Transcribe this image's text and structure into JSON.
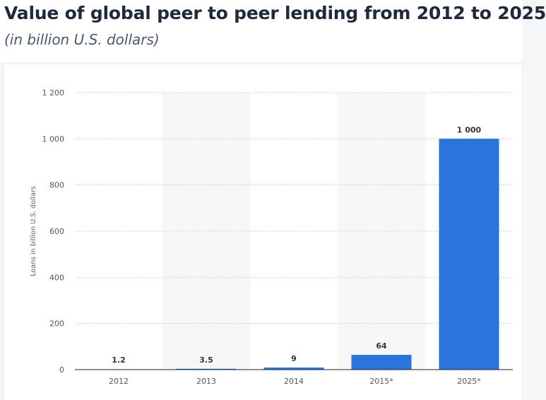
{
  "header": {
    "title": "Value of global peer to peer lending from 2012 to 2025",
    "subtitle": "(in billion U.S. dollars)"
  },
  "chart_data": {
    "type": "bar",
    "title": "Value of global peer to peer lending from 2012 to 2025",
    "subtitle": "(in billion U.S. dollars)",
    "categories": [
      "2012",
      "2013",
      "2014",
      "2015*",
      "2025*"
    ],
    "values": [
      1.2,
      3.5,
      9,
      64,
      1000
    ],
    "value_labels": [
      "1.2",
      "3.5",
      "9",
      "64",
      "1 000"
    ],
    "xlabel": "",
    "ylabel": "Loans in billion U.S. dollars",
    "ylim": [
      0,
      1200
    ],
    "yticks": [
      0,
      200,
      400,
      600,
      800,
      1000,
      1200
    ],
    "ytick_labels": [
      "0",
      "200",
      "400",
      "600",
      "800",
      "1 000",
      "1 200"
    ],
    "grid": true,
    "bar_color": "#2a74db",
    "alternate_band_color": "#f7f7f8"
  }
}
